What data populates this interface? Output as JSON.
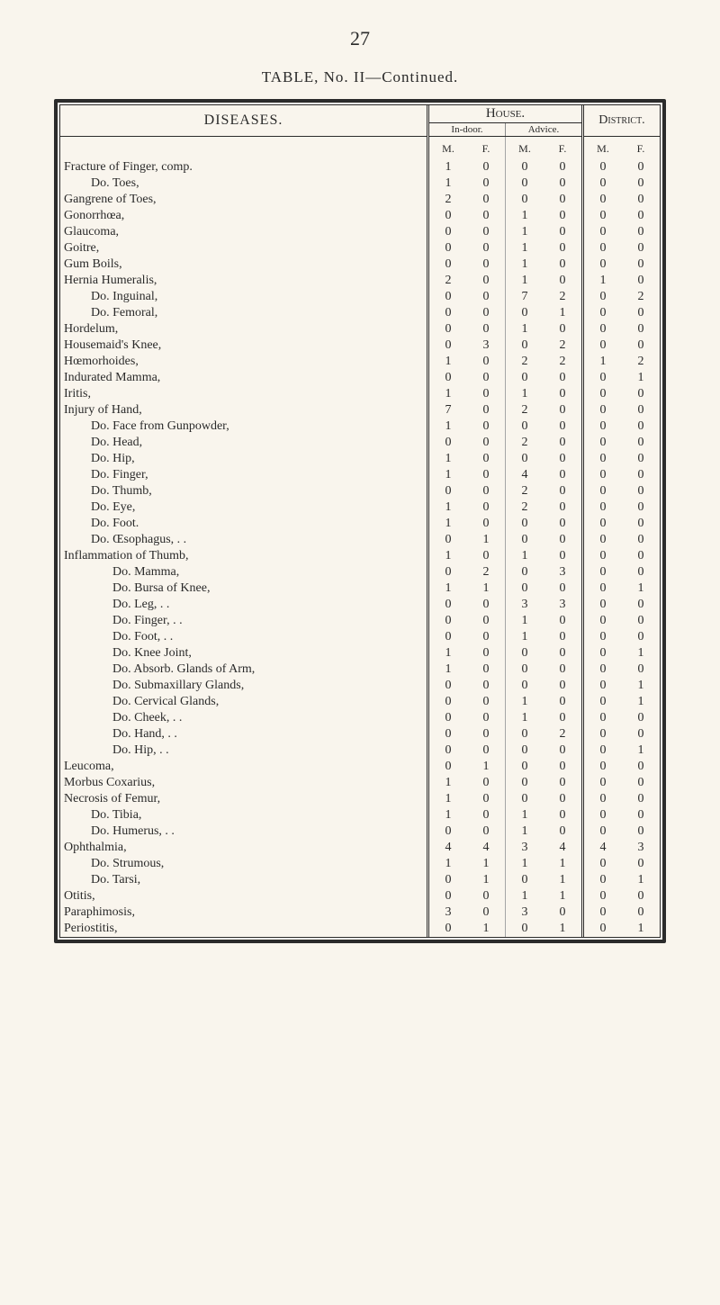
{
  "page_number": "27",
  "table_title": "TABLE, No. II—Continued.",
  "headers": {
    "diseases": "DISEASES.",
    "house": "House.",
    "district": "District.",
    "indoor": "In-door.",
    "advice": "Advice.",
    "m": "M.",
    "f": "F."
  },
  "rows": [
    {
      "label": "Fracture of Finger, comp.",
      "indent": 0,
      "v": [
        "1",
        "0",
        "0",
        "0",
        "0",
        "0"
      ]
    },
    {
      "label": "Do.    Toes,",
      "indent": 1,
      "v": [
        "1",
        "0",
        "0",
        "0",
        "0",
        "0"
      ]
    },
    {
      "label": "Gangrene of Toes,",
      "indent": 0,
      "v": [
        "2",
        "0",
        "0",
        "0",
        "0",
        "0"
      ]
    },
    {
      "label": "Gonorrhœa,",
      "indent": 0,
      "v": [
        "0",
        "0",
        "1",
        "0",
        "0",
        "0"
      ]
    },
    {
      "label": "Glaucoma,",
      "indent": 0,
      "v": [
        "0",
        "0",
        "1",
        "0",
        "0",
        "0"
      ]
    },
    {
      "label": "Goitre,",
      "indent": 0,
      "v": [
        "0",
        "0",
        "1",
        "0",
        "0",
        "0"
      ]
    },
    {
      "label": "Gum Boils,",
      "indent": 0,
      "v": [
        "0",
        "0",
        "1",
        "0",
        "0",
        "0"
      ]
    },
    {
      "label": "Hernia Humeralis,",
      "indent": 0,
      "v": [
        "2",
        "0",
        "1",
        "0",
        "1",
        "0"
      ]
    },
    {
      "label": "Do.    Inguinal,",
      "indent": 1,
      "v": [
        "0",
        "0",
        "7",
        "2",
        "0",
        "2"
      ]
    },
    {
      "label": "Do.    Femoral,",
      "indent": 1,
      "v": [
        "0",
        "0",
        "0",
        "1",
        "0",
        "0"
      ]
    },
    {
      "label": "Hordelum,",
      "indent": 0,
      "v": [
        "0",
        "0",
        "1",
        "0",
        "0",
        "0"
      ]
    },
    {
      "label": "Housemaid's Knee,",
      "indent": 0,
      "v": [
        "0",
        "3",
        "0",
        "2",
        "0",
        "0"
      ]
    },
    {
      "label": "Hœmorhoides,",
      "indent": 0,
      "v": [
        "1",
        "0",
        "2",
        "2",
        "1",
        "2"
      ]
    },
    {
      "label": "Indurated Mamma,",
      "indent": 0,
      "v": [
        "0",
        "0",
        "0",
        "0",
        "0",
        "1"
      ]
    },
    {
      "label": "Iritis,",
      "indent": 0,
      "v": [
        "1",
        "0",
        "1",
        "0",
        "0",
        "0"
      ]
    },
    {
      "label": "Injury of Hand,",
      "indent": 0,
      "v": [
        "7",
        "0",
        "2",
        "0",
        "0",
        "0"
      ]
    },
    {
      "label": "Do.    Face from Gunpowder,",
      "indent": 1,
      "v": [
        "1",
        "0",
        "0",
        "0",
        "0",
        "0"
      ]
    },
    {
      "label": "Do.    Head,",
      "indent": 1,
      "v": [
        "0",
        "0",
        "2",
        "0",
        "0",
        "0"
      ]
    },
    {
      "label": "Do.    Hip,",
      "indent": 1,
      "v": [
        "1",
        "0",
        "0",
        "0",
        "0",
        "0"
      ]
    },
    {
      "label": "Do.    Finger,",
      "indent": 1,
      "v": [
        "1",
        "0",
        "4",
        "0",
        "0",
        "0"
      ]
    },
    {
      "label": "Do.    Thumb,",
      "indent": 1,
      "v": [
        "0",
        "0",
        "2",
        "0",
        "0",
        "0"
      ]
    },
    {
      "label": "Do.    Eye,",
      "indent": 1,
      "v": [
        "1",
        "0",
        "2",
        "0",
        "0",
        "0"
      ]
    },
    {
      "label": "Do.    Foot.",
      "indent": 1,
      "v": [
        "1",
        "0",
        "0",
        "0",
        "0",
        "0"
      ]
    },
    {
      "label": "Do.    Œsophagus, . .",
      "indent": 1,
      "v": [
        "0",
        "1",
        "0",
        "0",
        "0",
        "0"
      ]
    },
    {
      "label": "Inflammation of Thumb,",
      "indent": 0,
      "v": [
        "1",
        "0",
        "1",
        "0",
        "0",
        "0"
      ]
    },
    {
      "label": "Do.           Mamma,",
      "indent": 2,
      "v": [
        "0",
        "2",
        "0",
        "3",
        "0",
        "0"
      ]
    },
    {
      "label": "Do.           Bursa of Knee,",
      "indent": 2,
      "v": [
        "1",
        "1",
        "0",
        "0",
        "0",
        "1"
      ]
    },
    {
      "label": "Do.           Leg,   . .",
      "indent": 2,
      "v": [
        "0",
        "0",
        "3",
        "3",
        "0",
        "0"
      ]
    },
    {
      "label": "Do.           Finger, . .",
      "indent": 2,
      "v": [
        "0",
        "0",
        "1",
        "0",
        "0",
        "0"
      ]
    },
    {
      "label": "Do.           Foot,  . .",
      "indent": 2,
      "v": [
        "0",
        "0",
        "1",
        "0",
        "0",
        "0"
      ]
    },
    {
      "label": "Do.           Knee Joint,",
      "indent": 2,
      "v": [
        "1",
        "0",
        "0",
        "0",
        "0",
        "1"
      ]
    },
    {
      "label": "Do.           Absorb. Glands of Arm,",
      "indent": 2,
      "v": [
        "1",
        "0",
        "0",
        "0",
        "0",
        "0"
      ]
    },
    {
      "label": "Do.           Submaxillary Glands,",
      "indent": 2,
      "v": [
        "0",
        "0",
        "0",
        "0",
        "0",
        "1"
      ]
    },
    {
      "label": "Do.           Cervical Glands,",
      "indent": 2,
      "v": [
        "0",
        "0",
        "1",
        "0",
        "0",
        "1"
      ]
    },
    {
      "label": "Do.           Cheek, . .",
      "indent": 2,
      "v": [
        "0",
        "0",
        "1",
        "0",
        "0",
        "0"
      ]
    },
    {
      "label": "Do.           Hand, . .",
      "indent": 2,
      "v": [
        "0",
        "0",
        "0",
        "2",
        "0",
        "0"
      ]
    },
    {
      "label": "Do.           Hip,   . .",
      "indent": 2,
      "v": [
        "0",
        "0",
        "0",
        "0",
        "0",
        "1"
      ]
    },
    {
      "label": "Leucoma,",
      "indent": 0,
      "v": [
        "0",
        "1",
        "0",
        "0",
        "0",
        "0"
      ]
    },
    {
      "label": "Morbus Coxarius,",
      "indent": 0,
      "v": [
        "1",
        "0",
        "0",
        "0",
        "0",
        "0"
      ]
    },
    {
      "label": "Necrosis of Femur,",
      "indent": 0,
      "v": [
        "1",
        "0",
        "0",
        "0",
        "0",
        "0"
      ]
    },
    {
      "label": "Do.    Tibia,",
      "indent": 1,
      "v": [
        "1",
        "0",
        "1",
        "0",
        "0",
        "0"
      ]
    },
    {
      "label": "Do.    Humerus, . .",
      "indent": 1,
      "v": [
        "0",
        "0",
        "1",
        "0",
        "0",
        "0"
      ]
    },
    {
      "label": "Ophthalmia,",
      "indent": 0,
      "v": [
        "4",
        "4",
        "3",
        "4",
        "4",
        "3"
      ]
    },
    {
      "label": "Do.    Strumous,",
      "indent": 1,
      "v": [
        "1",
        "1",
        "1",
        "1",
        "0",
        "0"
      ]
    },
    {
      "label": "Do.    Tarsi,",
      "indent": 1,
      "v": [
        "0",
        "1",
        "0",
        "1",
        "0",
        "1"
      ]
    },
    {
      "label": "Otitis,",
      "indent": 0,
      "v": [
        "0",
        "0",
        "1",
        "1",
        "0",
        "0"
      ]
    },
    {
      "label": "Paraphimosis,",
      "indent": 0,
      "v": [
        "3",
        "0",
        "3",
        "0",
        "0",
        "0"
      ]
    },
    {
      "label": "Periostitis,",
      "indent": 0,
      "v": [
        "0",
        "1",
        "0",
        "1",
        "0",
        "1"
      ]
    }
  ]
}
